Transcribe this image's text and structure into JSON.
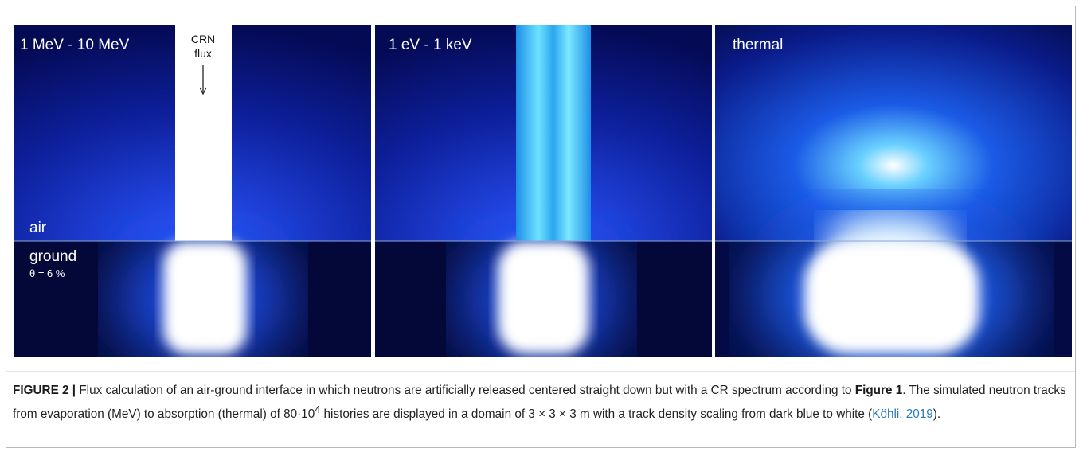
{
  "panels": [
    {
      "label": "1 MeV - 10 MeV",
      "beam_label": [
        "CRN",
        "flux"
      ],
      "air_label": "air",
      "ground_label": "ground",
      "moisture_label": "θ = 6 %"
    },
    {
      "label": "1 eV - 1 keV"
    },
    {
      "label": "thermal"
    }
  ],
  "caption": {
    "label": "FIGURE 2 |",
    "parts": [
      "Flux calculation of an air-ground interface in which neutrons are artificially released centered straight down but with a CR spectrum according to ",
      "Figure 1",
      ". The simulated neutron tracks from evaporation (MeV) to absorption (thermal) of 80·10",
      "4",
      " histories are displayed in a domain of 3 × 3 × 3 m with a track density scaling from dark blue to white (",
      "Köhli, 2019",
      ")."
    ]
  }
}
